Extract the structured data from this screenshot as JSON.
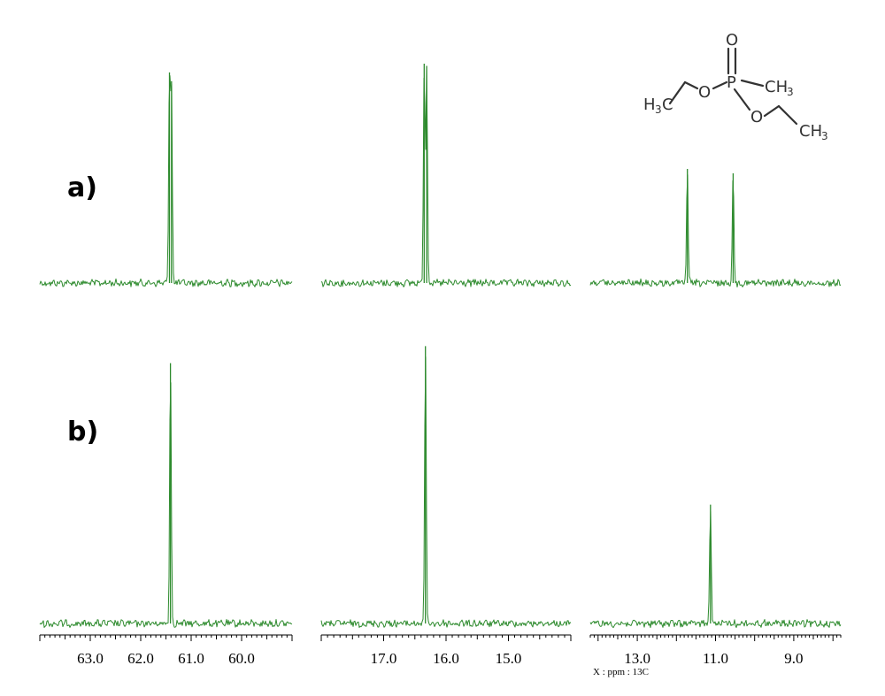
{
  "rows": [
    {
      "id": "a",
      "label": "a)"
    },
    {
      "id": "b",
      "label": "b)"
    }
  ],
  "axis_unit_label": "X : ppm : 13C",
  "molecule": {
    "atoms": {
      "o_top": "O",
      "p": "P",
      "ch3_right": "CH",
      "ch3_right_sub": "3",
      "o_left": "O",
      "h3c_left": "H",
      "h3c_left_sub": "3",
      "h3c_left_c": "C",
      "o_right": "O",
      "ch3_bottom": "CH",
      "ch3_bottom_sub": "3"
    }
  },
  "colors": {
    "spectrum": "#2e8b2e",
    "axis": "#000000",
    "molecule": "#333333"
  },
  "chart_data": [
    {
      "type": "line",
      "description_panel": "left",
      "x_reversed": true,
      "xlim": [
        64.0,
        59.0
      ],
      "ticks": [
        63.0,
        62.0,
        61.0,
        60.0
      ],
      "tick_labels": [
        "63.0",
        "62.0",
        "61.0",
        "60.0"
      ],
      "series": [
        {
          "row": "a",
          "peaks": [
            {
              "x": 61.43,
              "h": 0.96
            },
            {
              "x": 61.39,
              "h": 0.92
            }
          ]
        },
        {
          "row": "b",
          "peaks": [
            {
              "x": 61.41,
              "h": 0.92
            }
          ]
        }
      ]
    },
    {
      "type": "line",
      "description_panel": "middle",
      "x_reversed": true,
      "xlim": [
        18.0,
        14.0
      ],
      "ticks": [
        17.0,
        16.0,
        15.0
      ],
      "tick_labels": [
        "17.0",
        "16.0",
        "15.0"
      ],
      "series": [
        {
          "row": "a",
          "peaks": [
            {
              "x": 16.35,
              "h": 1.0
            },
            {
              "x": 16.31,
              "h": 0.99
            }
          ]
        },
        {
          "row": "b",
          "peaks": [
            {
              "x": 16.33,
              "h": 0.98
            }
          ]
        }
      ]
    },
    {
      "type": "line",
      "description_panel": "right",
      "x_reversed": true,
      "xlim": [
        14.2,
        7.8
      ],
      "ticks": [
        13.0,
        11.0,
        9.0
      ],
      "tick_labels": [
        "13.0",
        "11.0",
        "9.0"
      ],
      "series": [
        {
          "row": "a",
          "peaks": [
            {
              "x": 11.72,
              "h": 0.52
            },
            {
              "x": 10.55,
              "h": 0.5
            }
          ]
        },
        {
          "row": "b",
          "peaks": [
            {
              "x": 11.13,
              "h": 0.42
            }
          ]
        }
      ]
    }
  ]
}
